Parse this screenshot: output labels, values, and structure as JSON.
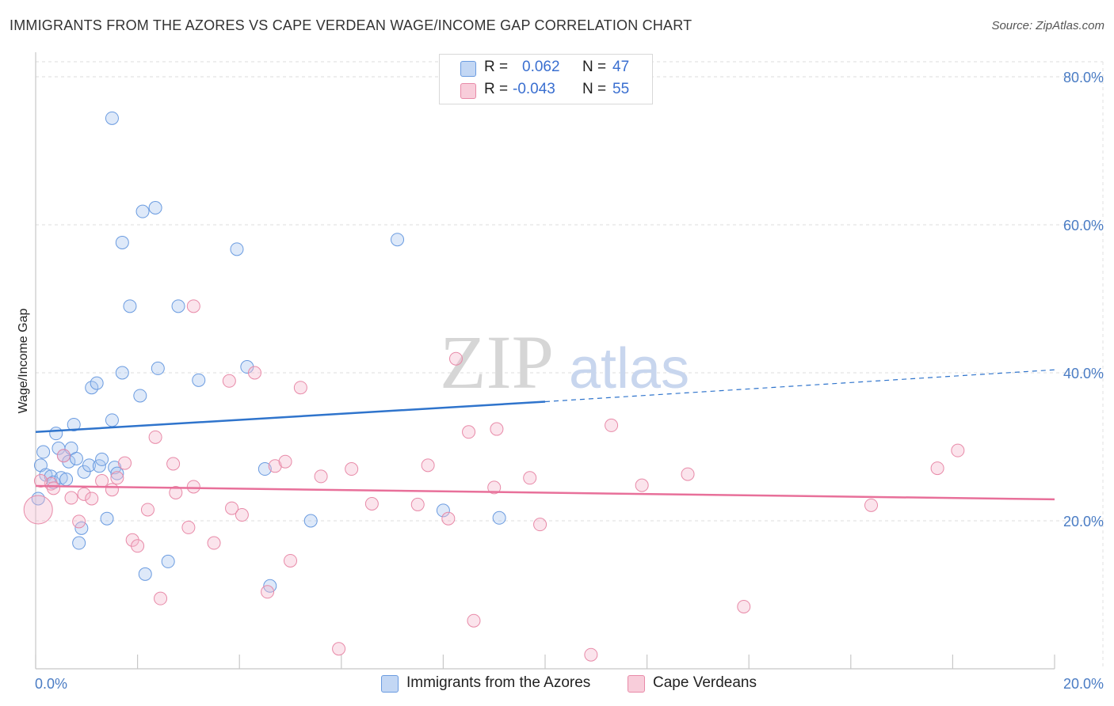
{
  "title": "IMMIGRANTS FROM THE AZORES VS CAPE VERDEAN WAGE/INCOME GAP CORRELATION CHART",
  "source": "Source: ZipAtlas.com",
  "watermark": {
    "zip": "ZIP",
    "atlas": "atlas"
  },
  "legend": {
    "row1": {
      "r_label": "R =",
      "r_value": "0.062",
      "n_label": "N =",
      "n_value": "47"
    },
    "row2": {
      "r_label": "R =",
      "r_value": "-0.043",
      "n_label": "N =",
      "n_value": "55"
    }
  },
  "bottom_legend": {
    "series1": "Immigrants from the Azores",
    "series2": "Cape Verdeans"
  },
  "colors": {
    "blue_fill": "#a9c6f0",
    "blue_stroke": "#6a9be0",
    "blue_line": "#2f74cc",
    "pink_fill": "#f5b8cc",
    "pink_stroke": "#e88aa8",
    "pink_line": "#e8709a",
    "tick_text": "#4a7cc4"
  },
  "chart_data": {
    "type": "scatter",
    "title": "IMMIGRANTS FROM THE AZORES VS CAPE VERDEAN WAGE/INCOME GAP CORRELATION CHART",
    "xlabel": "",
    "ylabel": "Wage/Income Gap",
    "xlim": [
      0,
      20
    ],
    "ylim": [
      0,
      82
    ],
    "x_tick_labels": [
      "0.0%",
      "20.0%"
    ],
    "y_ticks": [
      20,
      40,
      60,
      80
    ],
    "y_tick_labels": [
      "20.0%",
      "40.0%",
      "60.0%",
      "80.0%"
    ],
    "series": [
      {
        "name": "Immigrants from the Azores",
        "color": "blue",
        "R": 0.062,
        "N": 47,
        "trend": {
          "x0": 0,
          "y0": 32.0,
          "x1": 10,
          "y1": 36.1,
          "dashed_to_x": 20,
          "dashed_to_y": 40.4
        },
        "points": [
          [
            0.1,
            27.5
          ],
          [
            0.15,
            29.3
          ],
          [
            0.2,
            26.2
          ],
          [
            0.3,
            26.0
          ],
          [
            0.35,
            25.2
          ],
          [
            0.4,
            31.8
          ],
          [
            0.45,
            29.8
          ],
          [
            0.5,
            25.8
          ],
          [
            0.55,
            28.8
          ],
          [
            0.6,
            25.6
          ],
          [
            0.65,
            28.0
          ],
          [
            0.7,
            29.8
          ],
          [
            0.75,
            33.0
          ],
          [
            0.8,
            28.4
          ],
          [
            0.85,
            17.0
          ],
          [
            0.9,
            19.0
          ],
          [
            0.95,
            26.6
          ],
          [
            1.05,
            27.5
          ],
          [
            1.1,
            38.0
          ],
          [
            1.2,
            38.6
          ],
          [
            1.25,
            27.4
          ],
          [
            1.3,
            28.3
          ],
          [
            1.4,
            20.3
          ],
          [
            1.5,
            74.4
          ],
          [
            1.5,
            33.6
          ],
          [
            1.55,
            27.2
          ],
          [
            1.6,
            26.4
          ],
          [
            1.7,
            40.0
          ],
          [
            1.7,
            57.6
          ],
          [
            1.85,
            49.0
          ],
          [
            2.05,
            36.9
          ],
          [
            2.1,
            61.8
          ],
          [
            2.15,
            12.8
          ],
          [
            2.35,
            62.3
          ],
          [
            2.4,
            40.6
          ],
          [
            2.6,
            14.5
          ],
          [
            2.8,
            49.0
          ],
          [
            3.2,
            39.0
          ],
          [
            3.95,
            56.7
          ],
          [
            4.15,
            40.8
          ],
          [
            4.5,
            27.0
          ],
          [
            4.6,
            11.2
          ],
          [
            5.4,
            20.0
          ],
          [
            7.1,
            58.0
          ],
          [
            8.0,
            21.4
          ],
          [
            9.1,
            20.4
          ],
          [
            0.05,
            23.0
          ]
        ]
      },
      {
        "name": "Cape Verdeans",
        "color": "pink",
        "R": -0.043,
        "N": 55,
        "trend": {
          "x0": 0,
          "y0": 24.7,
          "x1": 20,
          "y1": 22.9
        },
        "points": [
          [
            0.05,
            21.5
          ],
          [
            0.3,
            25.0
          ],
          [
            0.35,
            24.4
          ],
          [
            0.55,
            28.8
          ],
          [
            0.7,
            23.1
          ],
          [
            0.85,
            19.9
          ],
          [
            0.95,
            23.6
          ],
          [
            1.1,
            23.0
          ],
          [
            1.3,
            25.4
          ],
          [
            1.5,
            24.2
          ],
          [
            1.6,
            25.8
          ],
          [
            1.75,
            27.8
          ],
          [
            1.9,
            17.4
          ],
          [
            2.0,
            16.6
          ],
          [
            2.2,
            21.5
          ],
          [
            2.35,
            31.3
          ],
          [
            2.45,
            9.5
          ],
          [
            2.7,
            27.7
          ],
          [
            2.75,
            23.8
          ],
          [
            3.0,
            19.1
          ],
          [
            3.1,
            49.0
          ],
          [
            3.1,
            24.6
          ],
          [
            3.5,
            17.0
          ],
          [
            3.8,
            38.9
          ],
          [
            3.85,
            21.7
          ],
          [
            4.05,
            20.8
          ],
          [
            4.3,
            40.0
          ],
          [
            4.55,
            10.4
          ],
          [
            4.7,
            27.4
          ],
          [
            4.9,
            28.0
          ],
          [
            5.0,
            14.6
          ],
          [
            5.2,
            38.0
          ],
          [
            5.6,
            26.0
          ],
          [
            5.95,
            2.7
          ],
          [
            6.2,
            27.0
          ],
          [
            6.6,
            22.3
          ],
          [
            7.5,
            22.2
          ],
          [
            7.7,
            27.5
          ],
          [
            8.1,
            20.3
          ],
          [
            8.25,
            41.9
          ],
          [
            8.5,
            32.0
          ],
          [
            8.6,
            6.5
          ],
          [
            9.0,
            24.5
          ],
          [
            9.05,
            32.4
          ],
          [
            9.7,
            25.8
          ],
          [
            9.9,
            19.5
          ],
          [
            10.9,
            1.9
          ],
          [
            11.3,
            32.9
          ],
          [
            11.9,
            24.8
          ],
          [
            12.8,
            26.3
          ],
          [
            13.9,
            8.4
          ],
          [
            16.4,
            22.1
          ],
          [
            17.7,
            27.1
          ],
          [
            18.1,
            29.5
          ],
          [
            0.1,
            25.4
          ]
        ]
      }
    ]
  }
}
